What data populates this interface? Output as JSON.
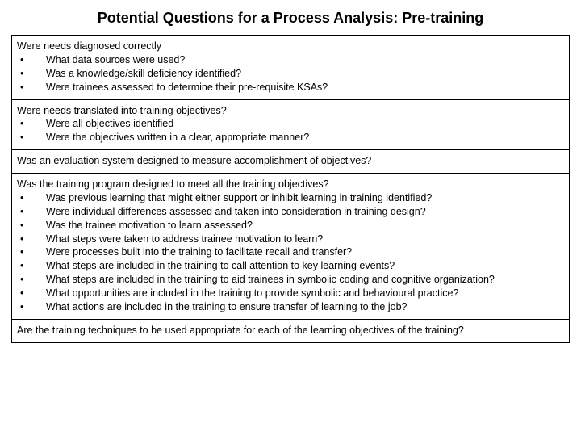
{
  "title": "Potential Questions for a Process Analysis: Pre-training",
  "sections": [
    {
      "lead": "Were needs diagnosed correctly",
      "bullets": [
        "What data sources were used?",
        "Was a knowledge/skill deficiency identified?",
        "Were trainees assessed to determine their pre-requisite KSAs?"
      ]
    },
    {
      "lead": "Were needs translated into training objectives?",
      "bullets": [
        "Were all objectives identified",
        "Were the objectives written in a clear, appropriate manner?"
      ]
    },
    {
      "lead": "Was an evaluation system designed to measure accomplishment of objectives?",
      "bullets": []
    },
    {
      "lead": "Was the training program designed to meet all the training objectives?",
      "bullets": [
        "Was previous learning that might either support or inhibit learning in training identified?",
        "Were individual differences assessed and taken into consideration in training design?",
        "Was the trainee motivation to learn assessed?",
        "What steps were taken to address trainee motivation to learn?",
        "Were processes built into the training to facilitate recall and transfer?",
        "What steps are included in the training to call attention to key learning events?",
        "What steps are included in the training to aid trainees in symbolic coding and cognitive organization?",
        "What opportunities are included in the training to provide symbolic and behavioural practice?",
        "What actions are included in the training to ensure transfer of learning to the job?"
      ]
    },
    {
      "lead": "Are the training techniques to be used appropriate for each of the learning objectives of the training?",
      "bullets": []
    }
  ],
  "colors": {
    "background": "#ffffff",
    "text": "#000000",
    "border": "#000000"
  },
  "typography": {
    "title_size_pt": 18,
    "body_size_pt": 12.5,
    "font_family": "Arial"
  }
}
